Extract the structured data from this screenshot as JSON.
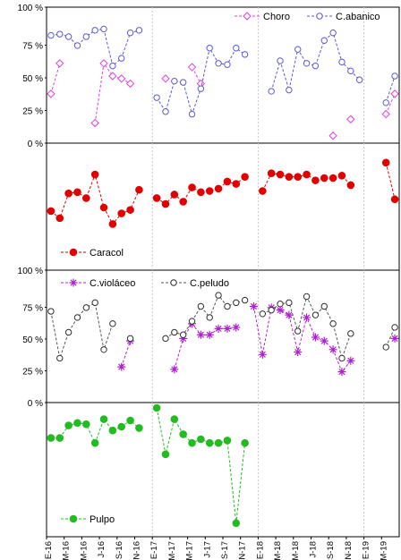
{
  "chart_data": {
    "type": "line",
    "x_labels": [
      "E-16",
      "M-16",
      "M-16",
      "J-16",
      "S-16",
      "N-16",
      "E-17",
      "M-17",
      "M-17",
      "J-17",
      "S-17",
      "N-17",
      "E-18",
      "M-18",
      "M-18",
      "J-18",
      "S-18",
      "N-18",
      "E-19",
      "M-19"
    ],
    "n_months": 40,
    "panels": [
      {
        "name": "panel-choro-abanico",
        "y_ticks": [
          "0 %",
          "25 %",
          "50 %",
          "75 %",
          "100 %"
        ],
        "ylim": [
          0,
          100
        ],
        "legend_position": "top-right",
        "series": [
          {
            "name": "Choro",
            "color": "#e040e0",
            "marker": "diamond",
            "values": [
              36,
              60,
              null,
              null,
              null,
              13,
              60,
              50,
              48,
              44,
              null,
              null,
              null,
              48,
              null,
              null,
              57,
              44,
              null,
              null,
              null,
              null,
              null,
              null,
              null,
              null,
              null,
              null,
              null,
              null,
              null,
              null,
              3,
              null,
              16,
              null,
              null,
              null,
              20,
              36
            ]
          },
          {
            "name": "C.abanico",
            "color": "#5a5ad8",
            "marker": "circle",
            "values": [
              null,
              null,
              null,
              null,
              null,
              null,
              null,
              null,
              null,
              null,
              null,
              null,
              null,
              null,
              null,
              null,
              null,
              null,
              null,
              null,
              null,
              null,
              null,
              null,
              null,
              null,
              null,
              null,
              null,
              null,
              null,
              null,
              null,
              null,
              null,
              null,
              null,
              null,
              null,
              null
            ]
          }
        ]
      },
      {
        "name": "panel-caracol",
        "y_ticks": [],
        "ylim": [
          0,
          100
        ],
        "legend_position": "bottom-left",
        "series": [
          {
            "name": "Caracol",
            "color": "#e00000",
            "marker": "circle-filled",
            "values": [
              48,
              41,
              62,
              63,
              59,
              78,
              50,
              36,
              45,
              48,
              65,
              null,
              null,
              61,
              55,
              67,
              58,
              73,
              60,
              64,
              65,
              69,
              77,
              76,
              80,
              null,
              null,
              null,
              null,
              null,
              null,
              null,
              null,
              null,
              null,
              null,
              null,
              null,
              null,
              null
            ]
          }
        ]
      },
      {
        "name": "panel-violaceo-peludo",
        "y_ticks": [
          "0 %",
          "25 %",
          "50 %",
          "75 %",
          "100 %"
        ],
        "ylim": [
          0,
          100
        ],
        "legend_position": "top-left",
        "series": [
          {
            "name": "C.violáceo",
            "color": "#b020d0",
            "marker": "asterisk",
            "values": [
              null,
              null,
              null,
              null,
              null,
              null,
              null,
              null,
              26,
              47,
              null,
              null,
              null,
              null,
              24,
              49,
              60,
              52,
              52,
              57,
              57,
              58,
              null,
              75,
              null,
              null,
              null,
              null,
              null,
              null,
              null,
              null,
              null,
              null,
              null,
              null,
              null,
              null,
              null,
              49
            ]
          },
          {
            "name": "C.peludo",
            "color": "#303030",
            "marker": "circle",
            "values": [
              71,
              33,
              54,
              66,
              74,
              78,
              40,
              61,
              null,
              null,
              49,
              null,
              null,
              49,
              54,
              52,
              63,
              75,
              66,
              84,
              75,
              78,
              80,
              null,
              null,
              null,
              null,
              null,
              null,
              null,
              null,
              null,
              null,
              null,
              null,
              null,
              null,
              null,
              42,
              58
            ]
          }
        ]
      },
      {
        "name": "panel-pulpo",
        "y_ticks": [],
        "ylim": [
          0,
          100
        ],
        "legend_position": "bottom-left",
        "series": [
          {
            "name": "Pulpo",
            "color": "#22bb22",
            "marker": "circle-filled",
            "values": [
              77,
              76,
              87,
              88,
              87,
              71,
              93,
              82,
              86,
              93,
              85,
              null,
              100,
              64,
              91,
              79,
              72,
              75,
              72,
              72,
              74,
              7,
              73,
              null,
              null,
              null,
              null,
              null,
              null,
              null,
              null,
              null,
              null,
              null,
              null,
              null,
              null,
              null,
              null,
              null
            ]
          }
        ]
      }
    ]
  }
}
